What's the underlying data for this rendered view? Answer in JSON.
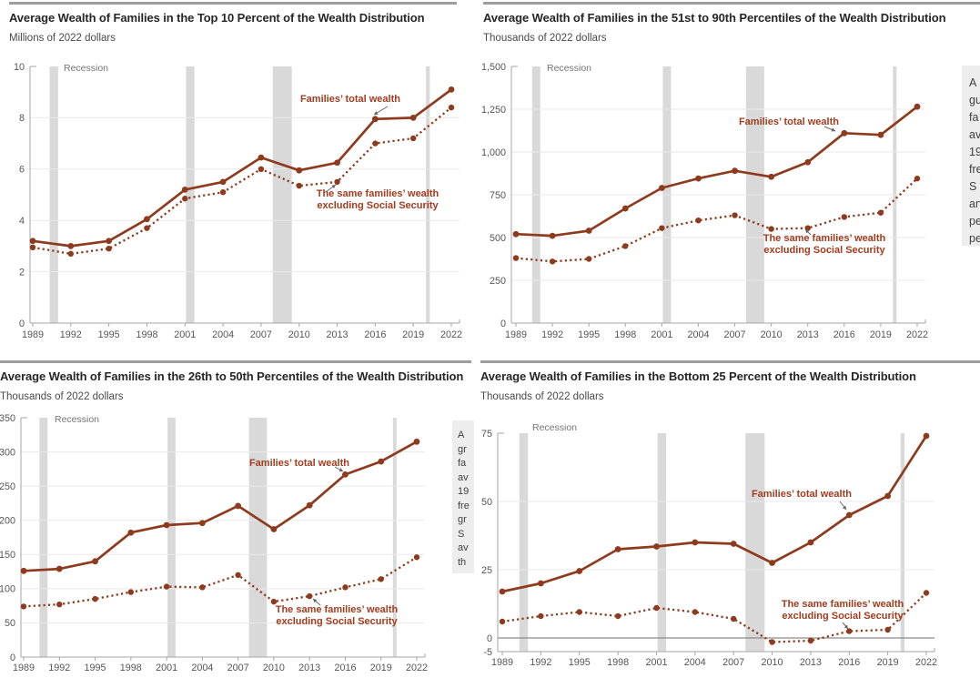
{
  "colors": {
    "line": "#8e3a1d",
    "annotation_text": "#a23c1e",
    "recession_band": "#d9d9d9",
    "gridline": "#e9e9e9",
    "zero_line": "#8c8c8c",
    "axis": "#a6a6a6",
    "title_text": "#262626",
    "subtitle_text": "#4a4a4a",
    "tick_label": "#555555",
    "recession_label": "#757575",
    "note_background": "#ededed",
    "note_text": "#3f3f3f",
    "panel_rule": "#9e9e9e"
  },
  "chart_data": [
    {
      "type": "line",
      "title": "Average Wealth of Families in the Top 10 Percent of the Wealth Distribution",
      "subtitle": "Millions of 2022 dollars",
      "recession_label": "Recession",
      "x": [
        1989,
        1992,
        1995,
        1998,
        2001,
        2004,
        2007,
        2010,
        2013,
        2016,
        2019,
        2022
      ],
      "series": [
        {
          "name": "Families’ total wealth",
          "style": "solid",
          "values": [
            3.2,
            3.0,
            3.2,
            4.05,
            5.2,
            5.5,
            6.45,
            5.95,
            6.25,
            7.95,
            8.0,
            9.1
          ]
        },
        {
          "name": "The same families’ wealth excluding Social Security",
          "style": "dotted",
          "values": [
            2.95,
            2.7,
            2.9,
            3.7,
            4.85,
            5.1,
            6.0,
            5.35,
            5.5,
            7.0,
            7.2,
            8.4
          ]
        }
      ],
      "ylim": [
        0,
        10
      ],
      "yticks": [
        0,
        2,
        4,
        6,
        8,
        10
      ],
      "ytick_labels": [
        "0",
        "2",
        "4",
        "6",
        "8",
        "10"
      ],
      "xtick_labels": [
        "1989",
        "1992",
        "1995",
        "1998",
        "2001",
        "2004",
        "2007",
        "2010",
        "2013",
        "2016",
        "2019",
        "2022"
      ],
      "recession_bands": [
        [
          1990.33,
          1991.0
        ],
        [
          2001.08,
          2001.75
        ],
        [
          2007.92,
          2009.42
        ],
        [
          2020.0,
          2020.3
        ]
      ],
      "annotations": [
        {
          "lines": [
            "Families’ total wealth"
          ]
        },
        {
          "lines": [
            "The same families’ wealth",
            "excluding Social Security"
          ]
        }
      ],
      "note_fragments": null
    },
    {
      "type": "line",
      "title": "Average Wealth of Families in the 51st to 90th Percentiles of the Wealth Distribution",
      "subtitle": "Thousands of 2022 dollars",
      "recession_label": "Recession",
      "x": [
        1989,
        1992,
        1995,
        1998,
        2001,
        2004,
        2007,
        2010,
        2013,
        2016,
        2019,
        2022
      ],
      "series": [
        {
          "name": "Families’ total wealth",
          "style": "solid",
          "values": [
            520,
            510,
            540,
            670,
            790,
            845,
            890,
            855,
            940,
            1110,
            1100,
            1265
          ]
        },
        {
          "name": "The same families’ wealth excluding Social Security",
          "style": "dotted",
          "values": [
            380,
            360,
            375,
            450,
            555,
            600,
            630,
            550,
            555,
            620,
            645,
            845
          ]
        }
      ],
      "ylim": [
        0,
        1500
      ],
      "yticks": [
        0,
        250,
        500,
        750,
        1000,
        1250,
        1500
      ],
      "ytick_labels": [
        "0",
        "250",
        "500",
        "750",
        "1,000",
        "1,250",
        "1,500"
      ],
      "xtick_labels": [
        "1989",
        "1992",
        "1995",
        "1998",
        "2001",
        "2004",
        "2007",
        "2010",
        "2013",
        "2016",
        "2019",
        "2022"
      ],
      "recession_bands": [
        [
          1990.33,
          1991.0
        ],
        [
          2001.08,
          2001.75
        ],
        [
          2007.92,
          2009.42
        ],
        [
          2020.0,
          2020.3
        ]
      ],
      "annotations": [
        {
          "lines": [
            "Families’ total wealth"
          ]
        },
        {
          "lines": [
            "The same families’ wealth",
            "excluding Social Security"
          ]
        }
      ],
      "note_fragments": [
        "A",
        "gu",
        "fa",
        "av",
        "19",
        "fre",
        "S",
        "an",
        "pe",
        "pe"
      ]
    },
    {
      "type": "line",
      "title": "Average Wealth of Families in the 26th to 50th Percentiles of the Wealth Distribution",
      "subtitle": "Thousands of 2022 dollars",
      "recession_label": "Recession",
      "x": [
        1989,
        1992,
        1995,
        1998,
        2001,
        2004,
        2007,
        2010,
        2013,
        2016,
        2019,
        2022
      ],
      "series": [
        {
          "name": "Families’ total wealth",
          "style": "solid",
          "values": [
            126,
            129,
            140,
            182,
            193,
            196,
            221,
            187,
            222,
            267,
            286,
            315
          ]
        },
        {
          "name": "The same families’ wealth excluding Social Security",
          "style": "dotted",
          "values": [
            74,
            77,
            85,
            95,
            103,
            102,
            120,
            81,
            89,
            102,
            114,
            146
          ]
        }
      ],
      "ylim": [
        0,
        350
      ],
      "yticks": [
        0,
        50,
        100,
        150,
        200,
        250,
        300,
        350
      ],
      "ytick_labels": [
        "0",
        "50",
        "100",
        "150",
        "200",
        "250",
        "300",
        "350"
      ],
      "xtick_labels": [
        "1989",
        "1992",
        "1995",
        "1998",
        "2001",
        "2004",
        "2007",
        "2010",
        "2013",
        "2016",
        "2019",
        "2022"
      ],
      "recession_bands": [
        [
          1990.33,
          1991.0
        ],
        [
          2001.08,
          2001.75
        ],
        [
          2007.92,
          2009.42
        ],
        [
          2020.0,
          2020.3
        ]
      ],
      "annotations": [
        {
          "lines": [
            "Families’ total wealth"
          ]
        },
        {
          "lines": [
            "The same families’ wealth",
            "excluding Social Security"
          ]
        }
      ],
      "note_fragments": [
        "A",
        "gr",
        "fa",
        "av",
        "19",
        "fre",
        "gr",
        "S",
        "av",
        "th"
      ]
    },
    {
      "type": "line",
      "title": "Average Wealth of Families in the Bottom 25 Percent of the Wealth Distribution",
      "subtitle": "Thousands of 2022 dollars",
      "recession_label": "Recession",
      "x": [
        1989,
        1992,
        1995,
        1998,
        2001,
        2004,
        2007,
        2010,
        2013,
        2016,
        2019,
        2022
      ],
      "series": [
        {
          "name": "Families’ total wealth",
          "style": "solid",
          "values": [
            17,
            20,
            24.5,
            32.5,
            33.5,
            35,
            34.5,
            27.5,
            35,
            45,
            52,
            74
          ]
        },
        {
          "name": "The same families’ wealth excluding Social Security",
          "style": "dotted",
          "values": [
            6,
            8,
            9.5,
            8,
            11,
            9.5,
            7,
            -1.5,
            -1,
            2.5,
            3,
            16.5
          ]
        }
      ],
      "ylim": [
        -5,
        75
      ],
      "yticks": [
        -5,
        0,
        25,
        50,
        75
      ],
      "ytick_labels": [
        "-5",
        "0",
        "25",
        "50",
        "75"
      ],
      "xtick_labels": [
        "1989",
        "1992",
        "1995",
        "1998",
        "2001",
        "2004",
        "2007",
        "2010",
        "2013",
        "2016",
        "2019",
        "2022"
      ],
      "recession_bands": [
        [
          1990.33,
          1991.0
        ],
        [
          2001.08,
          2001.75
        ],
        [
          2007.92,
          2009.42
        ],
        [
          2020.0,
          2020.3
        ]
      ],
      "annotations": [
        {
          "lines": [
            "Families’ total wealth"
          ]
        },
        {
          "lines": [
            "The same families’ wealth",
            "excluding Social Security"
          ]
        }
      ],
      "note_fragments": null
    }
  ]
}
